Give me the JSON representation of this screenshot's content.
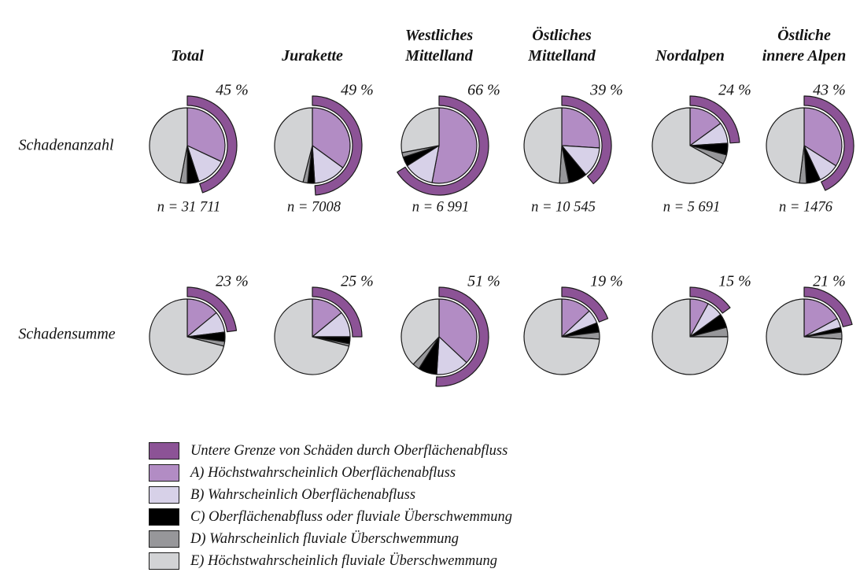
{
  "chart_data": {
    "type": "pie",
    "description": "Grid of pie charts (2 rows x 6 regions) with outer purple arc marking the lower-bound share of surface-runoff damages; values in percent",
    "columns": [
      {
        "id": "total",
        "label_lines": [
          "Total"
        ]
      },
      {
        "id": "jurakette",
        "label_lines": [
          "Jurakette"
        ]
      },
      {
        "id": "westliches-mittelland",
        "label_lines": [
          "Westliches",
          "Mittelland"
        ]
      },
      {
        "id": "oestliches-mittelland",
        "label_lines": [
          "Östliches",
          "Mittelland"
        ]
      },
      {
        "id": "nordalpen",
        "label_lines": [
          "Nordalpen"
        ]
      },
      {
        "id": "oestliche-innere-alpen",
        "label_lines": [
          "Östliche",
          "innere Alpen"
        ]
      }
    ],
    "slice_order": [
      "A",
      "B",
      "C",
      "D",
      "E"
    ],
    "rows": [
      {
        "id": "schadenanzahl",
        "label": "Schadenanzahl",
        "pies": [
          {
            "column": "total",
            "arc_pct": 45,
            "arc_label": "45 %",
            "n_label": "n = 31 711",
            "values": {
              "A": 32,
              "B": 13,
              "C": 5,
              "D": 3,
              "E": 47
            }
          },
          {
            "column": "jurakette",
            "arc_pct": 49,
            "arc_label": "49 %",
            "n_label": "n = 7008",
            "values": {
              "A": 35,
              "B": 14,
              "C": 3,
              "D": 2,
              "E": 46
            }
          },
          {
            "column": "westliches-mittelland",
            "arc_pct": 66,
            "arc_label": "66 %",
            "n_label": "n = 6 991",
            "values": {
              "A": 53,
              "B": 13,
              "C": 4,
              "D": 2,
              "E": 28
            }
          },
          {
            "column": "oestliches-mittelland",
            "arc_pct": 39,
            "arc_label": "39 %",
            "n_label": "n = 10 545",
            "values": {
              "A": 26,
              "B": 13,
              "C": 8,
              "D": 4,
              "E": 49
            }
          },
          {
            "column": "nordalpen",
            "arc_pct": 24,
            "arc_label": "24 %",
            "n_label": "n = 5 691",
            "values": {
              "A": 15,
              "B": 9,
              "C": 5,
              "D": 4,
              "E": 67
            }
          },
          {
            "column": "oestliche-innere-alpen",
            "arc_pct": 43,
            "arc_label": "43 %",
            "n_label": "n = 1476",
            "values": {
              "A": 34,
              "B": 9,
              "C": 6,
              "D": 3,
              "E": 48
            }
          }
        ]
      },
      {
        "id": "schadensumme",
        "label": "Schadensumme",
        "pies": [
          {
            "column": "total",
            "arc_pct": 23,
            "arc_label": "23 %",
            "n_label": "",
            "values": {
              "A": 14,
              "B": 9,
              "C": 4,
              "D": 2,
              "E": 71
            }
          },
          {
            "column": "jurakette",
            "arc_pct": 25,
            "arc_label": "25 %",
            "n_label": "",
            "values": {
              "A": 14,
              "B": 11,
              "C": 3,
              "D": 1,
              "E": 71
            }
          },
          {
            "column": "westliches-mittelland",
            "arc_pct": 51,
            "arc_label": "51 %",
            "n_label": "",
            "values": {
              "A": 37,
              "B": 14,
              "C": 8,
              "D": 3,
              "E": 38
            }
          },
          {
            "column": "oestliches-mittelland",
            "arc_pct": 19,
            "arc_label": "19 %",
            "n_label": "",
            "values": {
              "A": 13,
              "B": 6,
              "C": 4,
              "D": 3,
              "E": 74
            }
          },
          {
            "column": "nordalpen",
            "arc_pct": 15,
            "arc_label": "15 %",
            "n_label": "",
            "values": {
              "A": 8,
              "B": 7,
              "C": 6,
              "D": 4,
              "E": 75
            }
          },
          {
            "column": "oestliche-innere-alpen",
            "arc_pct": 21,
            "arc_label": "21 %",
            "n_label": "",
            "values": {
              "A": 17,
              "B": 4,
              "C": 2,
              "D": 3,
              "E": 74
            }
          }
        ]
      }
    ],
    "legend": [
      {
        "id": "untere-grenze",
        "label": "Untere Grenze von Schäden durch Oberflächenabfluss",
        "color": "#8c5396"
      },
      {
        "id": "a",
        "label": "A) Höchstwahrscheinlich Oberflächenabfluss",
        "color": "#b28cc4"
      },
      {
        "id": "b",
        "label": "B) Wahrscheinlich Oberflächenabfluss",
        "color": "#d7d1e8"
      },
      {
        "id": "c",
        "label": "C) Oberflächenabfluss oder fluviale Überschwemmung",
        "color": "#000000"
      },
      {
        "id": "d",
        "label": "D) Wahrscheinlich fluviale Überschwemmung",
        "color": "#97979a"
      },
      {
        "id": "e",
        "label": "E) Höchstwahrscheinlich fluviale Überschwemmung",
        "color": "#d2d3d5"
      }
    ],
    "colors": {
      "outline": "#1a1a1a",
      "background": "#ffffff",
      "text": "#141414"
    }
  }
}
